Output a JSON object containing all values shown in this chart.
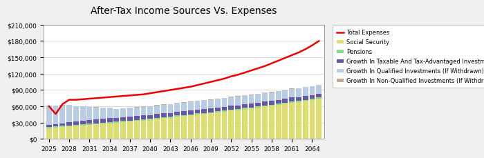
{
  "title": "After-Tax Income Sources Vs. Expenses",
  "years": [
    2025,
    2026,
    2027,
    2028,
    2029,
    2030,
    2031,
    2032,
    2033,
    2034,
    2035,
    2036,
    2037,
    2038,
    2039,
    2040,
    2041,
    2042,
    2043,
    2044,
    2045,
    2046,
    2047,
    2048,
    2049,
    2050,
    2051,
    2052,
    2053,
    2054,
    2055,
    2056,
    2057,
    2058,
    2059,
    2060,
    2061,
    2062,
    2063,
    2064,
    2065
  ],
  "social_security": [
    20000,
    21000,
    22000,
    23000,
    24000,
    25000,
    26000,
    27000,
    28000,
    29000,
    30000,
    31000,
    32000,
    33000,
    34000,
    35000,
    37000,
    38000,
    39000,
    41000,
    42000,
    43000,
    45000,
    46000,
    47000,
    49000,
    50000,
    52000,
    53000,
    55000,
    56000,
    58000,
    60000,
    61000,
    63000,
    65000,
    67000,
    68000,
    70000,
    72000,
    74000
  ],
  "pensions": [
    2000,
    2000,
    2000,
    2000,
    2000,
    2000,
    2000,
    2000,
    2000,
    2000,
    2000,
    2000,
    2000,
    2000,
    2000,
    2000,
    2000,
    2000,
    2000,
    2000,
    2000,
    2000,
    2000,
    2000,
    2000,
    2000,
    2000,
    2000,
    2000,
    2000,
    2000,
    2000,
    2000,
    2000,
    2000,
    2000,
    2000,
    2000,
    2000,
    2000,
    2000
  ],
  "taxable_investments": [
    4000,
    4500,
    5000,
    5500,
    6000,
    6000,
    6500,
    7000,
    7000,
    7000,
    7000,
    7000,
    7000,
    7000,
    7000,
    7000,
    7000,
    7000,
    7000,
    7000,
    7000,
    7000,
    7000,
    7000,
    7000,
    7000,
    7000,
    7000,
    7000,
    7000,
    7000,
    7000,
    7000,
    7000,
    7000,
    7000,
    7000,
    7000,
    7000,
    7000,
    7000
  ],
  "qualified_investments": [
    35000,
    34000,
    33000,
    32000,
    28000,
    27000,
    24000,
    22000,
    20000,
    19000,
    16000,
    16000,
    16000,
    16000,
    16000,
    16000,
    16000,
    16000,
    16000,
    16000,
    16000,
    16000,
    16000,
    16000,
    16000,
    16000,
    16000,
    16000,
    16000,
    16000,
    16000,
    16000,
    16000,
    16000,
    16000,
    16000,
    16000,
    16000,
    16000,
    16000,
    16000
  ],
  "non_qualified_investments": [
    500,
    500,
    500,
    500,
    500,
    500,
    500,
    500,
    500,
    500,
    500,
    500,
    500,
    500,
    500,
    500,
    500,
    500,
    500,
    500,
    500,
    500,
    500,
    500,
    500,
    500,
    500,
    500,
    500,
    500,
    500,
    500,
    500,
    500,
    500,
    500,
    500,
    500,
    500,
    500,
    500
  ],
  "total_expenses": [
    60000,
    46000,
    64000,
    72000,
    72000,
    73000,
    74000,
    75000,
    76000,
    77000,
    78000,
    79000,
    80000,
    81000,
    82000,
    84000,
    86000,
    88000,
    90000,
    92000,
    94000,
    96000,
    99000,
    102000,
    105000,
    108000,
    111000,
    115000,
    118000,
    122000,
    126000,
    130000,
    134000,
    139000,
    144000,
    149000,
    154000,
    159000,
    165000,
    172000,
    180000
  ],
  "colors": {
    "social_security": "#dede6e",
    "pensions": "#88dd88",
    "taxable_investments": "#6655aa",
    "qualified_investments": "#b8cce4",
    "non_qualified_investments": "#c8aa88",
    "total_expenses": "#ee0000"
  },
  "ylim": [
    0,
    210000
  ],
  "yticks": [
    0,
    30000,
    60000,
    90000,
    120000,
    150000,
    180000,
    210000
  ],
  "xtick_years": [
    2025,
    2028,
    2031,
    2034,
    2037,
    2040,
    2043,
    2046,
    2049,
    2052,
    2055,
    2058,
    2061,
    2064
  ],
  "legend_labels": [
    "Social Security",
    "Pensions",
    "Growth In Taxable And Tax-Advantaged Investments",
    "Growth In Qualified Investments (If Withdrawn)",
    "Growth In Non-Qualified Investments (If Withdrawn)",
    "Total Expenses"
  ],
  "background_color": "#f0f0f0",
  "plot_bg_color": "#ffffff"
}
